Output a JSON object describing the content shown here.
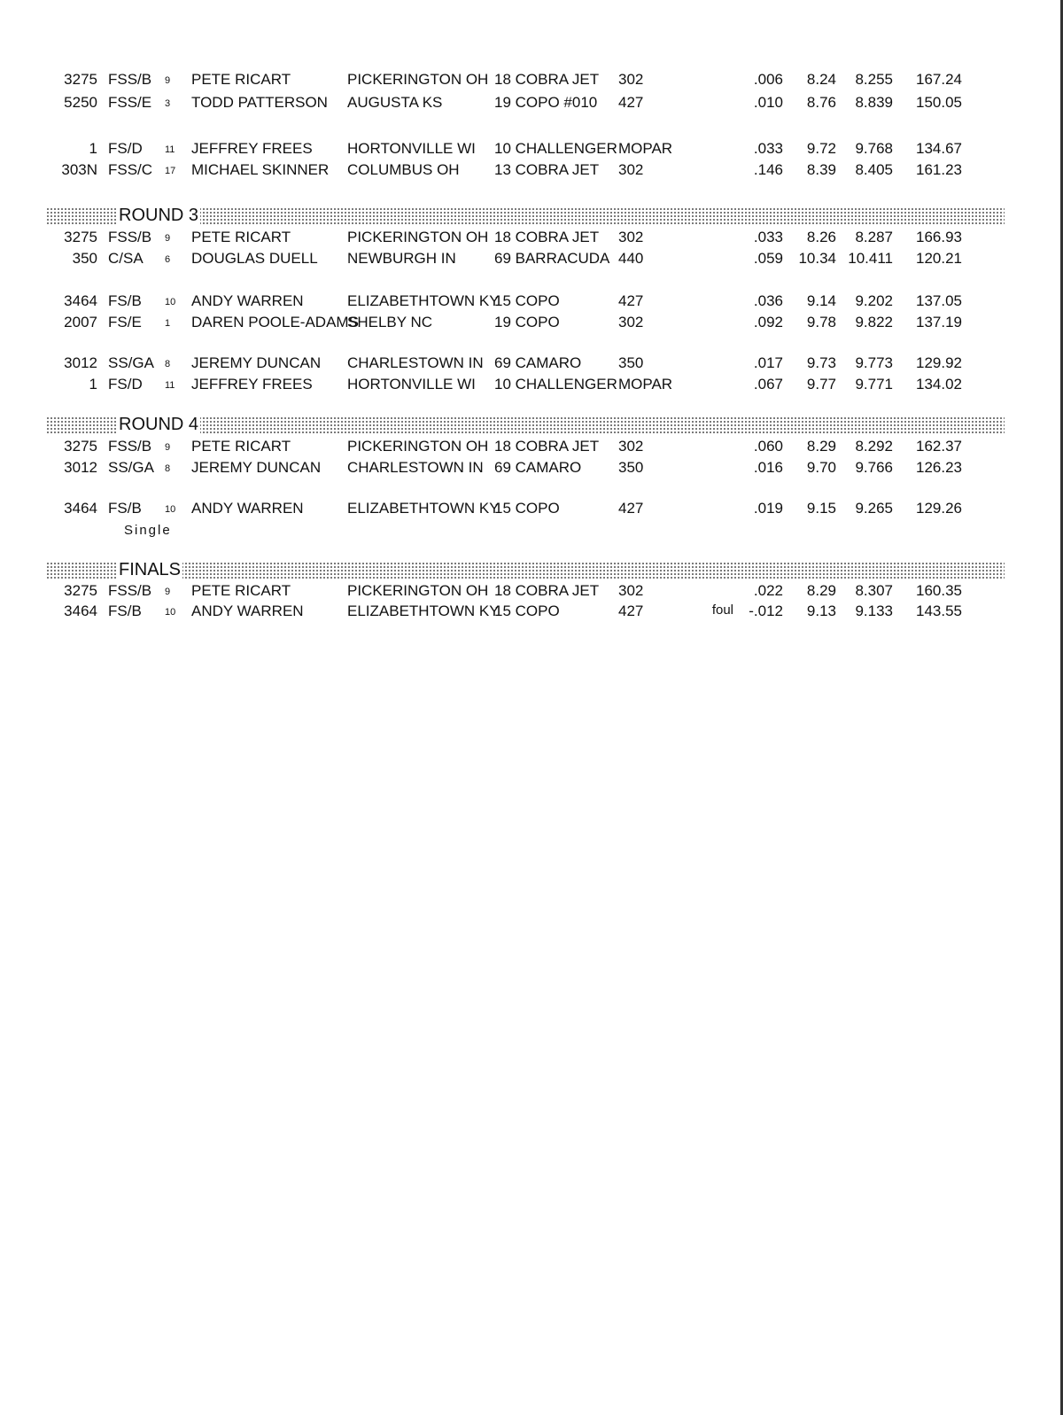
{
  "sections": [
    {
      "header": "",
      "rows": [
        [
          "3275",
          "FSS/B",
          "9",
          "PETE RICART",
          "PICKERINGTON  OH",
          "18 COBRA JET",
          "302",
          "",
          ".006",
          "8.24",
          "8.255",
          "167.24"
        ],
        [
          "5250",
          "FSS/E",
          "3",
          "TODD PATTERSON",
          "AUGUSTA  KS",
          "19 COPO #010",
          "427",
          "",
          ".010",
          "8.76",
          "8.839",
          "150.05"
        ],
        [
          "1",
          "FS/D",
          "11",
          "JEFFREY FREES",
          "HORTONVILLE  WI",
          "10 CHALLENGER",
          "MOPAR",
          "",
          ".033",
          "9.72",
          "9.768",
          "134.67"
        ],
        [
          "303N",
          "FSS/C",
          "17",
          "MICHAEL SKINNER",
          "COLUMBUS  OH",
          "13 COBRA JET",
          "302",
          "",
          ".146",
          "8.39",
          "8.405",
          "161.23"
        ]
      ]
    },
    {
      "header": "ROUND 3",
      "rows": [
        [
          "3275",
          "FSS/B",
          "9",
          "PETE RICART",
          "PICKERINGTON  OH",
          "18 COBRA JET",
          "302",
          "",
          ".033",
          "8.26",
          "8.287",
          "166.93"
        ],
        [
          "350",
          "C/SA",
          "6",
          "DOUGLAS DUELL",
          "NEWBURGH  IN",
          "69 BARRACUDA",
          "440",
          "",
          ".059",
          "10.34",
          "10.411",
          "120.21"
        ],
        [
          "3464",
          "FS/B",
          "10",
          "ANDY WARREN",
          "ELIZABETHTOWN  KY",
          "15 COPO",
          "427",
          "",
          ".036",
          "9.14",
          "9.202",
          "137.05"
        ],
        [
          "2007",
          "FS/E",
          "1",
          "DAREN POOLE-ADAMS",
          "SHELBY  NC",
          "19 COPO",
          "302",
          "",
          ".092",
          "9.78",
          "9.822",
          "137.19"
        ],
        [
          "3012",
          "SS/GA",
          "8",
          "JEREMY DUNCAN",
          "CHARLESTOWN  IN",
          "69 CAMARO",
          "350",
          "",
          ".017",
          "9.73",
          "9.773",
          "129.92"
        ],
        [
          "1",
          "FS/D",
          "11",
          "JEFFREY FREES",
          "HORTONVILLE  WI",
          "10 CHALLENGER",
          "MOPAR",
          "",
          ".067",
          "9.77",
          "9.771",
          "134.02"
        ]
      ]
    },
    {
      "header": "ROUND 4",
      "rows": [
        [
          "3275",
          "FSS/B",
          "9",
          "PETE RICART",
          "PICKERINGTON  OH",
          "18 COBRA JET",
          "302",
          "",
          ".060",
          "8.29",
          "8.292",
          "162.37"
        ],
        [
          "3012",
          "SS/GA",
          "8",
          "JEREMY DUNCAN",
          "CHARLESTOWN  IN",
          "69 CAMARO",
          "350",
          "",
          ".016",
          "9.70",
          "9.766",
          "126.23"
        ],
        [
          "3464",
          "FS/B",
          "10",
          "ANDY WARREN",
          "ELIZABETHTOWN  KY",
          "15 COPO",
          "427",
          "",
          ".019",
          "9.15",
          "9.265",
          "129.26"
        ]
      ],
      "single": "Single"
    },
    {
      "header": "FINALS",
      "rows": [
        [
          "3275",
          "FSS/B",
          "9",
          "PETE RICART",
          "PICKERINGTON  OH",
          "18 COBRA JET",
          "302",
          "",
          ".022",
          "8.29",
          "8.307",
          "160.35"
        ],
        [
          "3464",
          "FS/B",
          "10",
          "ANDY WARREN",
          "ELIZABETHTOWN  KY",
          "15 COPO",
          "427",
          "foul",
          "-.012",
          "9.13",
          "9.133",
          "143.55"
        ]
      ]
    }
  ]
}
